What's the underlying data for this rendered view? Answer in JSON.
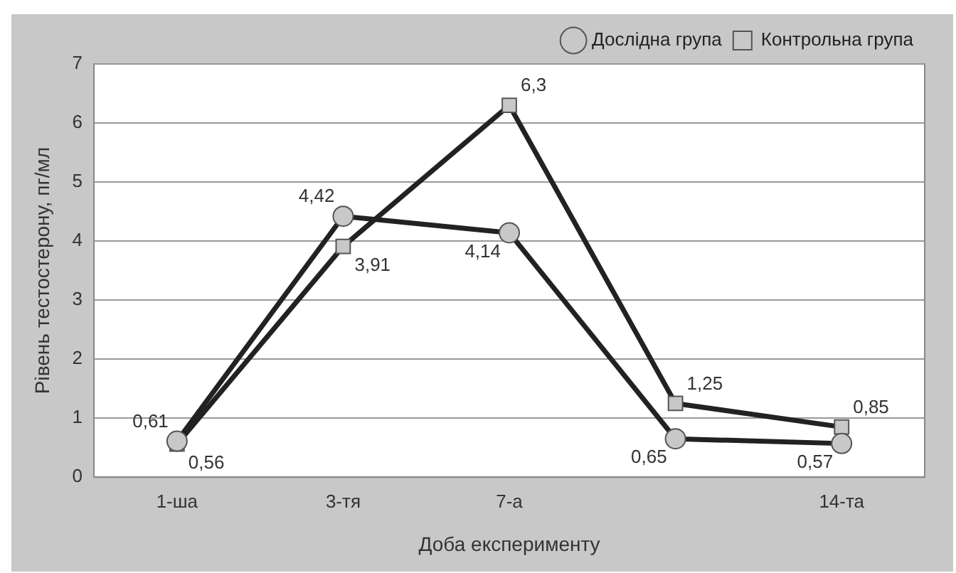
{
  "chart_data": {
    "type": "line",
    "xlabel": "Доба експерименту",
    "ylabel": "Рівень тестостерону, пг/мл",
    "categories": [
      "1-ша",
      "3-тя",
      "7-а",
      null,
      "14-та"
    ],
    "series": [
      {
        "name": "Дослідна група",
        "color": "#222222",
        "marker": "circle",
        "values": [
          0.61,
          4.42,
          4.14,
          0.65,
          0.57
        ],
        "value_labels": [
          "0,61",
          "4,42",
          "4,14",
          "0,65",
          "0,57"
        ]
      },
      {
        "name": "Контрольна група",
        "color": "#222222",
        "marker": "square",
        "values": [
          0.56,
          3.91,
          6.3,
          1.25,
          0.85
        ],
        "value_labels": [
          "0,56",
          "3,91",
          "6,3",
          "1,25",
          "0,85"
        ]
      }
    ],
    "ylim": [
      0,
      7
    ],
    "yticks": [
      0,
      1,
      2,
      3,
      4,
      5,
      6,
      7
    ],
    "grid": "y",
    "legend": "top right",
    "line_style": "solid"
  }
}
